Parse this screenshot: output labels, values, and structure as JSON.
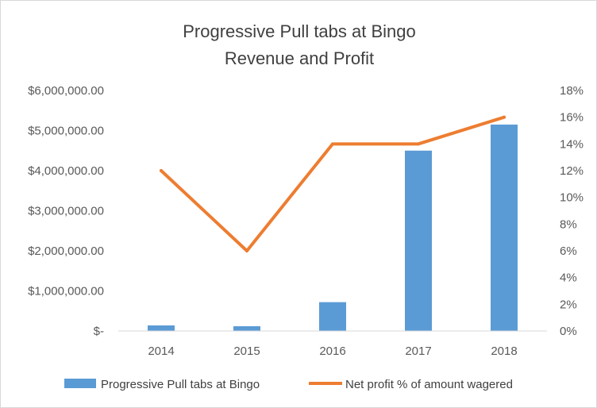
{
  "chart_data": {
    "type": "bar",
    "title": "Progressive Pull tabs at Bingo",
    "subtitle": "Revenue and Profit",
    "categories": [
      "2014",
      "2015",
      "2016",
      "2017",
      "2018"
    ],
    "series": [
      {
        "name": "Progressive Pull tabs at Bingo",
        "type": "bar",
        "axis": "left",
        "color": "#5b9bd5",
        "values": [
          140000,
          120000,
          720000,
          4500000,
          5150000
        ]
      },
      {
        "name": "Net profit % of amount wagered",
        "type": "line",
        "axis": "right",
        "color": "#ed7d31",
        "values": [
          0.12,
          0.06,
          0.14,
          0.14,
          0.16
        ]
      }
    ],
    "y_left": {
      "range": [
        0,
        6000000
      ],
      "ticks": [
        0,
        1000000,
        2000000,
        3000000,
        4000000,
        5000000,
        6000000
      ],
      "tick_labels": [
        "$-",
        "$1,000,000.00",
        "$2,000,000.00",
        "$3,000,000.00",
        "$4,000,000.00",
        "$5,000,000.00",
        "$6,000,000.00"
      ]
    },
    "y_right": {
      "range": [
        0,
        0.18
      ],
      "ticks": [
        0,
        0.02,
        0.04,
        0.06,
        0.08,
        0.1,
        0.12,
        0.14,
        0.16,
        0.18
      ],
      "tick_labels": [
        "0%",
        "2%",
        "4%",
        "6%",
        "8%",
        "10%",
        "12%",
        "14%",
        "16%",
        "18%"
      ]
    },
    "grid": false,
    "legend_position": "bottom"
  }
}
